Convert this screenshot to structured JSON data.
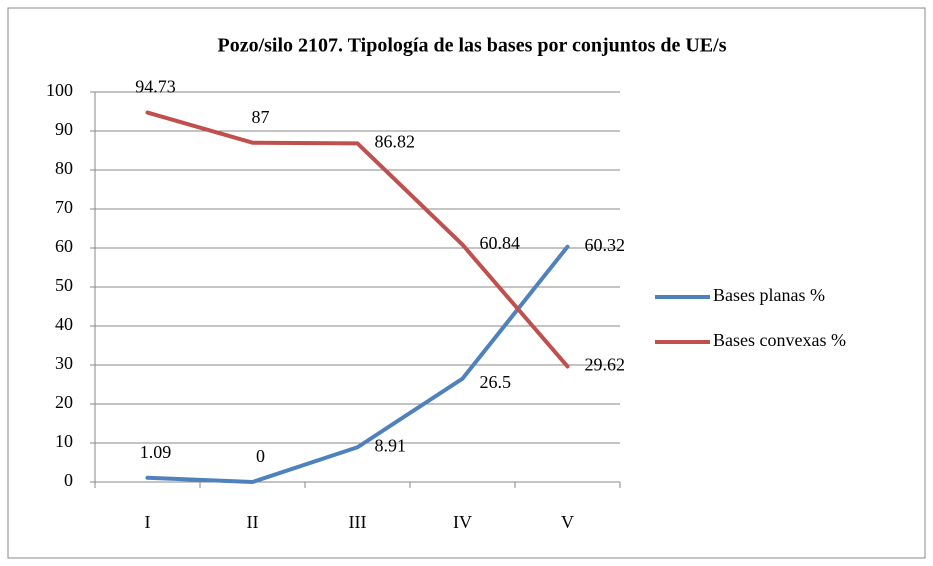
{
  "chart_data": {
    "type": "line",
    "title": "Pozo/silo 2107. Tipología de las bases por conjuntos de UE/s",
    "categories": [
      "I",
      "II",
      "III",
      "IV",
      "V"
    ],
    "series": [
      {
        "name": "Bases planas %",
        "color": "#4f81bd",
        "values": [
          1.09,
          0,
          8.91,
          26.5,
          60.32
        ]
      },
      {
        "name": "Bases convexas %",
        "color": "#c0504d",
        "values": [
          94.73,
          87,
          86.82,
          60.84,
          29.62
        ]
      }
    ],
    "ylim": [
      0,
      100
    ],
    "yticks": [
      0,
      10,
      20,
      30,
      40,
      50,
      60,
      70,
      80,
      90,
      100
    ],
    "grid": true,
    "legend": "right",
    "data_labels": true
  }
}
